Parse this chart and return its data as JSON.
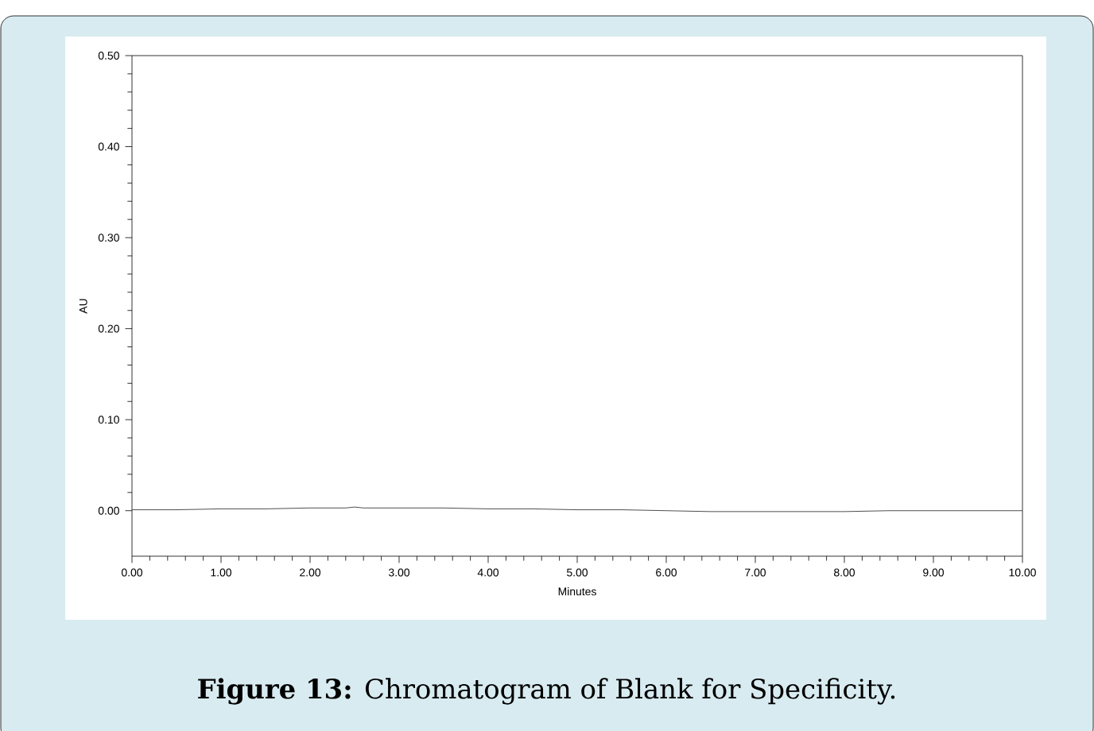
{
  "chart_data": {
    "type": "line",
    "xlabel": "Minutes",
    "ylabel": "AU",
    "x": [
      0,
      0.5,
      1,
      1.5,
      2,
      2.4,
      2.5,
      2.6,
      3,
      3.5,
      4,
      4.5,
      5,
      5.5,
      6,
      6.5,
      7,
      7.5,
      8,
      8.5,
      9,
      9.5,
      10
    ],
    "series": [
      {
        "color": "#222222",
        "values": [
          0.001,
          0.001,
          0.002,
          0.002,
          0.003,
          0.003,
          0.004,
          0.003,
          0.003,
          0.003,
          0.002,
          0.002,
          0.001,
          0.001,
          0.0,
          -0.001,
          -0.001,
          -0.001,
          -0.001,
          0.0,
          0.0,
          0.0,
          0.0
        ]
      }
    ],
    "xlim": [
      0,
      10
    ],
    "ylim": [
      -0.05,
      0.5
    ],
    "xticks": [
      {
        "value": 0,
        "label": "0.00"
      },
      {
        "value": 1,
        "label": "1.00"
      },
      {
        "value": 2,
        "label": "2.00"
      },
      {
        "value": 3,
        "label": "3.00"
      },
      {
        "value": 4,
        "label": "4.00"
      },
      {
        "value": 5,
        "label": "5.00"
      },
      {
        "value": 6,
        "label": "6.00"
      },
      {
        "value": 7,
        "label": "7.00"
      },
      {
        "value": 8,
        "label": "8.00"
      },
      {
        "value": 9,
        "label": "9.00"
      },
      {
        "value": 10,
        "label": "10.00"
      }
    ],
    "yticks": [
      {
        "value": 0,
        "label": "0.00"
      },
      {
        "value": 0.1,
        "label": "0.10"
      },
      {
        "value": 0.2,
        "label": "0.20"
      },
      {
        "value": 0.3,
        "label": "0.30"
      },
      {
        "value": 0.4,
        "label": "0.40"
      },
      {
        "value": 0.5,
        "label": "0.50"
      }
    ],
    "grid": false,
    "marker": "none",
    "line_style": "solid",
    "annotations": [
      "**Figure 13:** Chromatogram of Blank for Specificity."
    ]
  }
}
